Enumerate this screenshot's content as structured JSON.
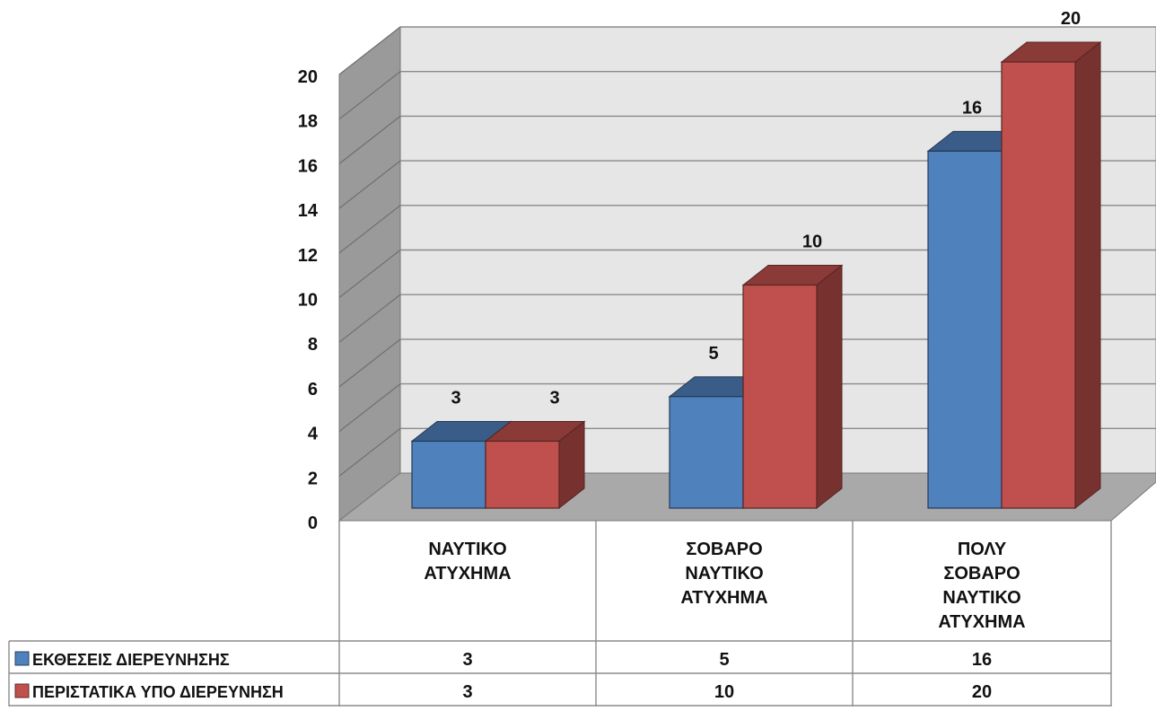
{
  "chart_data": {
    "type": "bar",
    "style": "3d-clustered-column-with-data-table",
    "categories": [
      [
        "ΝΑΥΤΙΚΟ",
        "ΑΤΥΧΗΜΑ"
      ],
      [
        "ΣΟΒΑΡΟ",
        "ΝΑΥΤΙΚΟ",
        "ΑΤΥΧΗΜΑ"
      ],
      [
        "ΠΟΛΥ",
        "ΣΟΒΑΡΟ",
        "ΝΑΥΤΙΚΟ",
        "ΑΤΥΧΗΜΑ"
      ]
    ],
    "series": [
      {
        "name": "ΕΚΘΕΣΕΙΣ ΔΙΕΡΕΥΝΗΣΗΣ",
        "values": [
          3,
          5,
          16
        ],
        "labels": [
          "3",
          "5",
          "16"
        ],
        "color": "#4f81bd"
      },
      {
        "name": "ΠΕΡΙΣΤΑΤΙΚΑ ΥΠΟ ΔΙΕΡΕΥΝΗΣΗ",
        "values": [
          3,
          10,
          20
        ],
        "labels": [
          "3",
          "10",
          "20"
        ],
        "color": "#c0504d"
      }
    ],
    "ylim": [
      0,
      20
    ],
    "yticks": [
      "0",
      "2",
      "4",
      "6",
      "8",
      "10",
      "12",
      "14",
      "16",
      "18",
      "20"
    ],
    "grid": true,
    "data_table": true,
    "legend": "data-table-left"
  }
}
